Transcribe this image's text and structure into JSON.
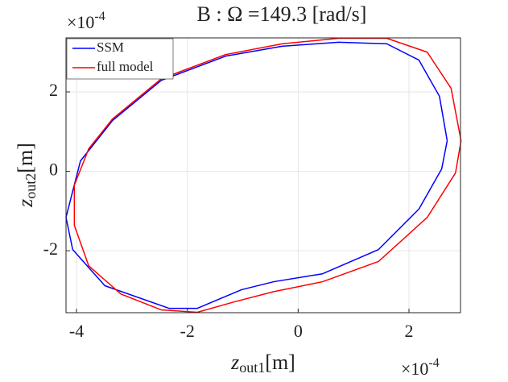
{
  "chart_data": {
    "type": "line",
    "title": "B : Ω =149.3 [rad/s]",
    "xlabel": "z",
    "xlabel_sub": "out1",
    "xlabel_unit": "[m]",
    "ylabel": "z",
    "ylabel_sub": "out2",
    "ylabel_unit": "[m]",
    "x_multiplier": "×10",
    "x_exponent": "-4",
    "y_multiplier": "×10",
    "y_exponent": "-4",
    "xlim": [
      -4.19,
      2.93
    ],
    "xticks": [
      -4,
      -2,
      0,
      2
    ],
    "ylim": [
      -3.56,
      3.36
    ],
    "yticks": [
      -2,
      0,
      2
    ],
    "grid": true,
    "legend": "upper-left",
    "series": [
      {
        "name": "SSM",
        "color": "#0000ff",
        "x": [
          2.69,
          2.55,
          2.18,
          1.6,
          0.73,
          -0.29,
          -1.31,
          -2.47,
          -3.35,
          -3.93,
          -4.19,
          -4.07,
          -3.49,
          -2.33,
          -1.82,
          -1.02,
          -0.44,
          0.44,
          1.45,
          2.18,
          2.59,
          2.69
        ],
        "values": [
          0.77,
          1.89,
          2.8,
          3.21,
          3.25,
          3.15,
          2.9,
          2.29,
          1.28,
          0.26,
          -1.16,
          -1.97,
          -2.88,
          -3.45,
          -3.45,
          -2.98,
          -2.78,
          -2.58,
          -1.97,
          -0.95,
          0.06,
          0.77
        ]
      },
      {
        "name": "full model",
        "color": "#ff0000",
        "x": [
          2.94,
          2.76,
          2.33,
          1.6,
          0.73,
          -0.29,
          -1.31,
          -2.47,
          -3.35,
          -3.78,
          -4.04,
          -4.04,
          -3.78,
          -3.2,
          -2.47,
          -1.82,
          -1.16,
          -0.44,
          0.44,
          1.45,
          2.33,
          2.84,
          2.94
        ],
        "values": [
          0.77,
          2.09,
          3.0,
          3.35,
          3.35,
          3.21,
          2.94,
          2.33,
          1.32,
          0.57,
          -0.35,
          -1.36,
          -2.38,
          -3.09,
          -3.49,
          -3.55,
          -3.29,
          -3.03,
          -2.78,
          -2.27,
          -1.16,
          -0.04,
          0.77
        ]
      }
    ]
  }
}
